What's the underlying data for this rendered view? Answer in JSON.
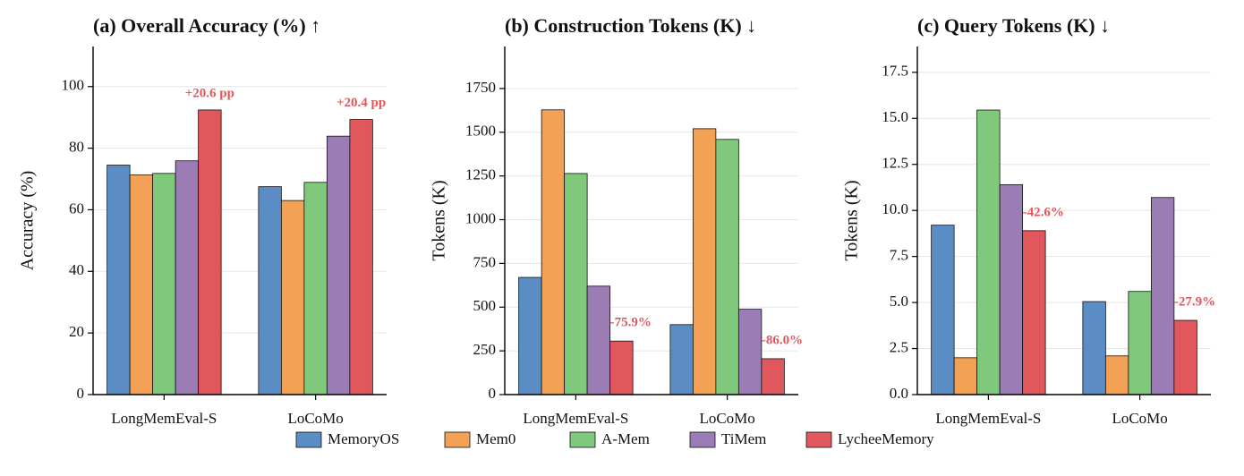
{
  "chart_data": [
    {
      "type": "bar",
      "title": "(a) Overall Accuracy (%) ↑",
      "y_label": "Accuracy (%)",
      "categories": [
        "LongMemEval-S",
        "LoCoMo"
      ],
      "series": [
        {
          "name": "MemoryOS",
          "color": "#5b8dc4",
          "values": [
            74.5,
            67.5
          ]
        },
        {
          "name": "Mem0",
          "color": "#f2a155",
          "values": [
            71.3,
            63.0
          ]
        },
        {
          "name": "A-Mem",
          "color": "#80c87c",
          "values": [
            71.8,
            68.9
          ]
        },
        {
          "name": "TiMem",
          "color": "#9c7cb5",
          "values": [
            75.9,
            83.9
          ]
        },
        {
          "name": "LycheeMemory",
          "color": "#e0585c",
          "values": [
            92.4,
            89.3
          ]
        }
      ],
      "annotations": [
        "+20.6 pp",
        "+20.4 pp"
      ],
      "ylim": [
        0,
        113
      ],
      "yticks": [
        0,
        20,
        40,
        60,
        80,
        100
      ],
      "grid": true
    },
    {
      "type": "bar",
      "title": "(b) Construction Tokens (K) ↓",
      "y_label": "Tokens (K)",
      "categories": [
        "LongMemEval-S",
        "LoCoMo"
      ],
      "series": [
        {
          "name": "MemoryOS",
          "color": "#5b8dc4",
          "values": [
            670,
            400
          ]
        },
        {
          "name": "Mem0",
          "color": "#f2a155",
          "values": [
            1628,
            1520
          ]
        },
        {
          "name": "A-Mem",
          "color": "#80c87c",
          "values": [
            1264,
            1459
          ]
        },
        {
          "name": "TiMem",
          "color": "#9c7cb5",
          "values": [
            620,
            488
          ]
        },
        {
          "name": "LycheeMemory",
          "color": "#e0585c",
          "values": [
            306,
            205
          ]
        }
      ],
      "annotations": [
        "-75.9%",
        "-86.0%"
      ],
      "ylim": [
        0,
        1990
      ],
      "yticks": [
        0,
        250,
        500,
        750,
        1000,
        1250,
        1500,
        1750
      ],
      "grid": true
    },
    {
      "type": "bar",
      "title": "(c) Query Tokens (K) ↓",
      "y_label": "Tokens (K)",
      "categories": [
        "LongMemEval-S",
        "LoCoMo"
      ],
      "series": [
        {
          "name": "MemoryOS",
          "color": "#5b8dc4",
          "values": [
            9.2,
            5.05
          ]
        },
        {
          "name": "Mem0",
          "color": "#f2a155",
          "values": [
            2.0,
            2.1
          ]
        },
        {
          "name": "A-Mem",
          "color": "#80c87c",
          "values": [
            15.45,
            5.6
          ]
        },
        {
          "name": "TiMem",
          "color": "#9c7cb5",
          "values": [
            11.4,
            10.7
          ]
        },
        {
          "name": "LycheeMemory",
          "color": "#e0585c",
          "values": [
            8.9,
            4.03
          ]
        }
      ],
      "annotations": [
        "-42.6%",
        "-27.9%"
      ],
      "ylim": [
        0,
        18.9
      ],
      "yticks": [
        {
          "value": 0,
          "label": "0.0"
        },
        2.5,
        {
          "value": 5,
          "label": "5.0"
        },
        7.5,
        {
          "value": 10,
          "label": "10.0"
        },
        12.5,
        {
          "value": 15,
          "label": "15.0"
        },
        17.5
      ],
      "grid": true
    }
  ]
}
